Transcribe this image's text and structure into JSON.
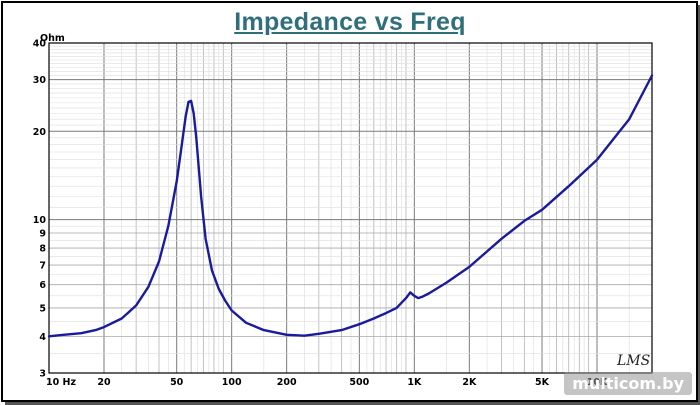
{
  "chart_data": {
    "type": "line",
    "title": "Impedance vs Freq",
    "ylabel": "Ohm",
    "xlabel": "",
    "xscale": "log",
    "yscale": "log",
    "xlim": [
      10,
      20000
    ],
    "ylim": [
      3,
      40
    ],
    "grid": true,
    "x_tick_labels": [
      {
        "v": 10,
        "label": "10 Hz"
      },
      {
        "v": 20,
        "label": "20"
      },
      {
        "v": 50,
        "label": "50"
      },
      {
        "v": 100,
        "label": "100"
      },
      {
        "v": 200,
        "label": "200"
      },
      {
        "v": 500,
        "label": "500"
      },
      {
        "v": 1000,
        "label": "1K"
      },
      {
        "v": 2000,
        "label": "2K"
      },
      {
        "v": 5000,
        "label": "5K"
      },
      {
        "v": 10000,
        "label": "10K"
      }
    ],
    "y_tick_labels": [
      {
        "v": 3,
        "label": "3"
      },
      {
        "v": 4,
        "label": "4"
      },
      {
        "v": 5,
        "label": "5"
      },
      {
        "v": 6,
        "label": "6"
      },
      {
        "v": 7,
        "label": "7"
      },
      {
        "v": 8,
        "label": "8"
      },
      {
        "v": 9,
        "label": "9"
      },
      {
        "v": 10,
        "label": "10"
      },
      {
        "v": 20,
        "label": "20"
      },
      {
        "v": 30,
        "label": "30"
      },
      {
        "v": 40,
        "label": "40"
      }
    ],
    "series": [
      {
        "color": "#1a1a9c",
        "x": [
          10,
          12,
          15,
          18,
          20,
          25,
          30,
          35,
          40,
          45,
          50,
          53,
          56,
          58,
          60,
          62,
          64,
          68,
          72,
          78,
          85,
          92,
          100,
          120,
          150,
          200,
          250,
          300,
          400,
          500,
          600,
          700,
          800,
          900,
          950,
          1000,
          1050,
          1100,
          1200,
          1500,
          2000,
          3000,
          4000,
          5000,
          7000,
          10000,
          15000,
          20000
        ],
        "y": [
          4.0,
          4.05,
          4.1,
          4.2,
          4.3,
          4.6,
          5.1,
          5.9,
          7.2,
          9.5,
          13.5,
          17.5,
          22.5,
          25.2,
          25.4,
          23.0,
          19.0,
          12.0,
          8.6,
          6.7,
          5.8,
          5.3,
          4.9,
          4.45,
          4.2,
          4.05,
          4.02,
          4.08,
          4.2,
          4.4,
          4.6,
          4.8,
          5.0,
          5.4,
          5.65,
          5.5,
          5.4,
          5.45,
          5.6,
          6.1,
          6.9,
          8.6,
          9.9,
          10.8,
          13.0,
          16.0,
          22.0,
          31.0
        ]
      }
    ]
  },
  "watermark": "multicom.by",
  "signature": "LMS"
}
